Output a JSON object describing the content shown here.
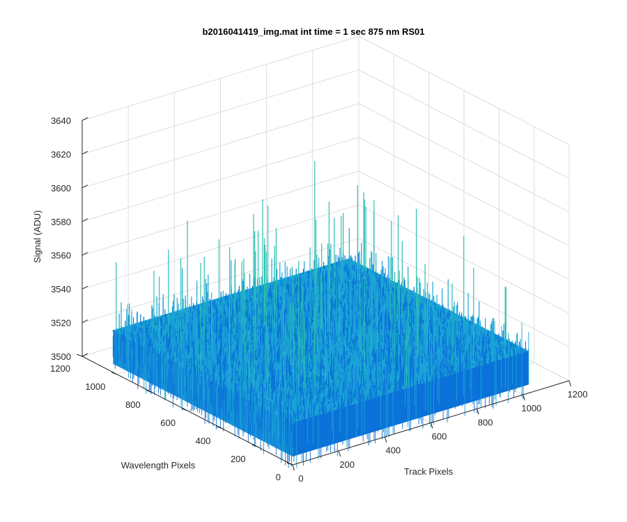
{
  "chart_data": {
    "type": "surface",
    "title": "b2016041419_img.mat int time = 1 sec  875 nm RS01",
    "xlabel": "Track Pixels",
    "ylabel": "Wavelength Pixels",
    "zlabel": "Signal (ADU)",
    "xlim": [
      0,
      1200
    ],
    "ylim": [
      0,
      1200
    ],
    "zlim": [
      3500,
      3640
    ],
    "x_ticks": [
      0,
      200,
      400,
      600,
      800,
      1000,
      1200
    ],
    "y_ticks": [
      0,
      200,
      400,
      600,
      800,
      1000,
      1200
    ],
    "z_ticks": [
      3500,
      3520,
      3540,
      3560,
      3580,
      3600,
      3620,
      3640
    ],
    "data_extent": {
      "x": [
        0,
        1024
      ],
      "y": [
        0,
        1024
      ]
    },
    "signal_mean": 3525,
    "signal_spread": [
      3505,
      3580
    ],
    "grid": true,
    "colormap": "parula",
    "colors": {
      "low": "#0a72d8",
      "mid": "#1aa3d6",
      "high": "#2bbfb0",
      "axis": "#262626",
      "grid": "#dcdcdc"
    }
  }
}
